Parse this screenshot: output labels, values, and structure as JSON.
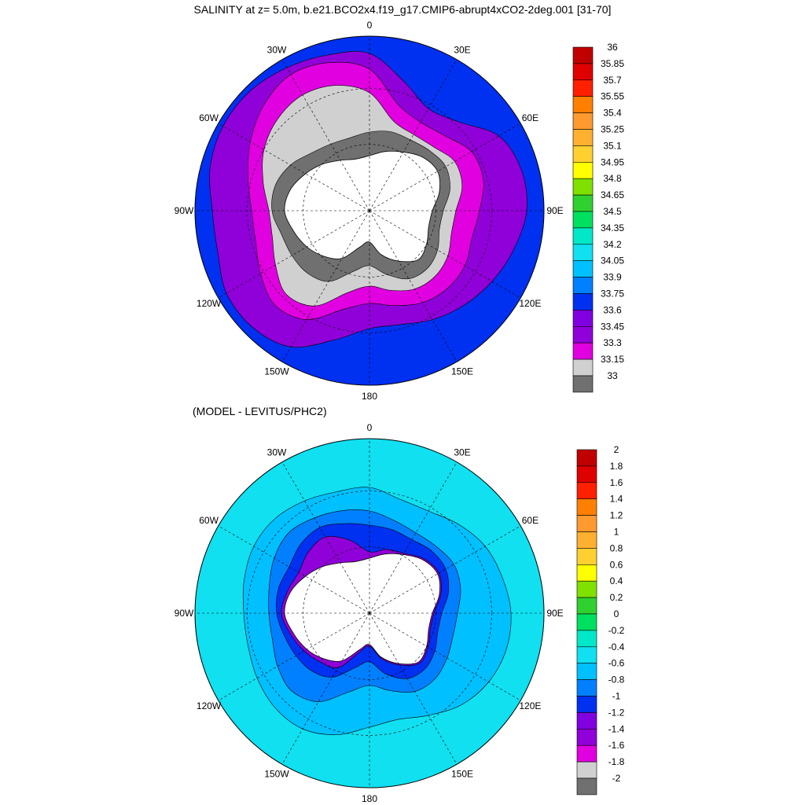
{
  "figure": {
    "title": "SALINITY at z=   5.0m, b.e21.BCO2x4.f19_g17.CMIP6-abrupt4xCO2-2deg.001 [31-70]",
    "subtitle": "(MODEL - LEVITUS/PHC2)"
  },
  "maps": [
    {
      "id": "salinity",
      "projection": "south-polar-stereographic",
      "longitude_labels": [
        "0",
        "30E",
        "60E",
        "90E",
        "120E",
        "150E",
        "180",
        "150W",
        "120W",
        "90W",
        "60W",
        "30W"
      ],
      "colorbar": {
        "levels": [
          "36",
          "35.85",
          "35.7",
          "35.55",
          "35.4",
          "35.25",
          "35.1",
          "34.95",
          "34.8",
          "34.65",
          "34.5",
          "34.35",
          "34.2",
          "34.05",
          "33.9",
          "33.75",
          "33.6",
          "33.45",
          "33.3",
          "33.15",
          "33"
        ],
        "colors": [
          "#c00000",
          "#e00000",
          "#ff2000",
          "#ff8000",
          "#ff9a30",
          "#ffb030",
          "#ffd030",
          "#ffff00",
          "#80e000",
          "#30d030",
          "#00e060",
          "#00e8c8",
          "#10e0f0",
          "#00c0ff",
          "#0080ff",
          "#0030f0",
          "#8000e0",
          "#9000d8",
          "#e000e0",
          "#d0d0d0",
          "#707070"
        ]
      },
      "regions": [
        {
          "name": "outer-ring",
          "color": "#0030f0"
        },
        {
          "name": "main-field",
          "color": "#9000d8"
        },
        {
          "name": "coastal-band",
          "color": "#e000e0"
        },
        {
          "name": "shelf-light",
          "color": "#d0d0d0"
        },
        {
          "name": "shelf-dark",
          "color": "#707070"
        }
      ]
    },
    {
      "id": "difference",
      "projection": "south-polar-stereographic",
      "longitude_labels": [
        "0",
        "30E",
        "60E",
        "90E",
        "120E",
        "150E",
        "180",
        "150W",
        "120W",
        "90W",
        "60W",
        "30W"
      ],
      "colorbar": {
        "levels": [
          "2",
          "1.8",
          "1.6",
          "1.4",
          "1.2",
          "1",
          "0.8",
          "0.6",
          "0.4",
          "0.2",
          "0",
          "-0.2",
          "-0.4",
          "-0.6",
          "-0.8",
          "-1",
          "-1.2",
          "-1.4",
          "-1.6",
          "-1.8",
          "-2"
        ],
        "colors": [
          "#c00000",
          "#e00000",
          "#ff2000",
          "#ff8000",
          "#ff9a30",
          "#ffb030",
          "#ffd030",
          "#ffff00",
          "#80e000",
          "#30d030",
          "#00e060",
          "#00e8c8",
          "#10e0f0",
          "#00c0ff",
          "#0080ff",
          "#0030f0",
          "#8000e0",
          "#9000d8",
          "#e000e0",
          "#d0d0d0",
          "#707070"
        ]
      },
      "regions": [
        {
          "name": "outer-field",
          "color": "#10e0f0"
        },
        {
          "name": "mid-band",
          "color": "#00c0ff"
        },
        {
          "name": "inner-band",
          "color": "#0080ff"
        },
        {
          "name": "coastal-dark",
          "color": "#0030f0"
        },
        {
          "name": "coastal-purple",
          "color": "#9000d8"
        }
      ]
    }
  ]
}
